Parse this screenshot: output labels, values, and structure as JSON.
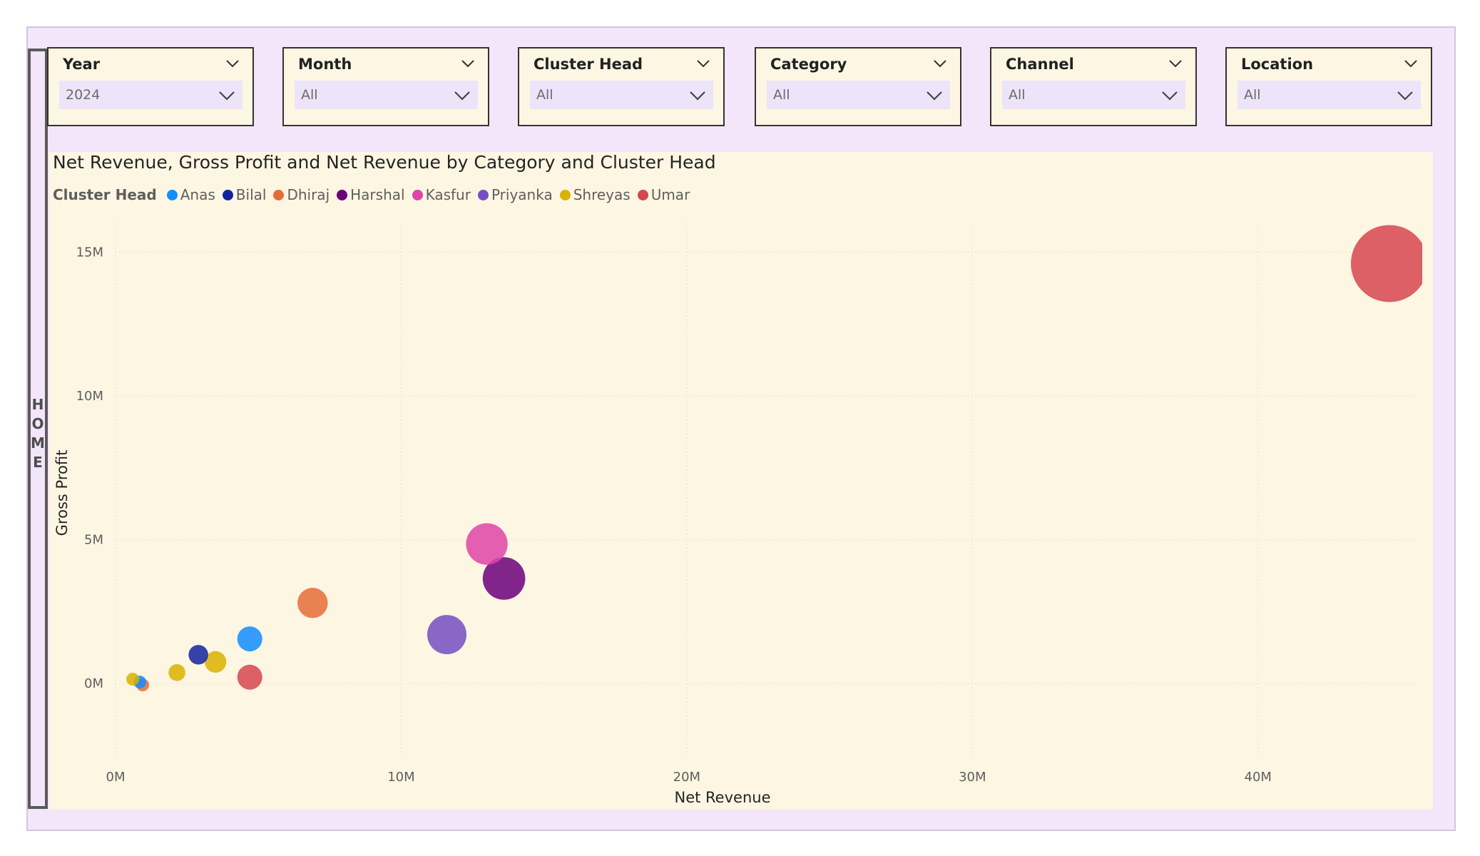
{
  "home": {
    "label": "HOME"
  },
  "slicers": [
    {
      "title": "Year",
      "value": "2024"
    },
    {
      "title": "Month",
      "value": "All"
    },
    {
      "title": "Cluster Head",
      "value": "All"
    },
    {
      "title": "Category",
      "value": "All"
    },
    {
      "title": "Channel",
      "value": "All"
    },
    {
      "title": "Location",
      "value": "All"
    }
  ],
  "chart_data": {
    "type": "scatter",
    "title": "Net Revenue, Gross Profit and Net Revenue by Category and Cluster Head",
    "xlabel": "Net Revenue",
    "ylabel": "Gross Profit",
    "size_measure": "Net Revenue",
    "legend_title": "Cluster Head",
    "legend_position": "top-left",
    "xlim": [
      0,
      45.5
    ],
    "ylim": [
      -2.6,
      16.0
    ],
    "x_unit": "M",
    "y_unit": "M",
    "x_ticks": [
      {
        "value": 0,
        "label": "0M"
      },
      {
        "value": 10,
        "label": "10M"
      },
      {
        "value": 20,
        "label": "20M"
      },
      {
        "value": 30,
        "label": "30M"
      },
      {
        "value": 40,
        "label": "40M"
      }
    ],
    "y_ticks": [
      {
        "value": 0,
        "label": "0M"
      },
      {
        "value": 5,
        "label": "5M"
      },
      {
        "value": 10,
        "label": "10M"
      },
      {
        "value": 15,
        "label": "15M"
      }
    ],
    "grid": true,
    "series": [
      {
        "name": "Anas",
        "color": "#118DFF",
        "points": [
          {
            "x": 4.7,
            "y": 1.55,
            "size": 4.7
          },
          {
            "x": 0.85,
            "y": 0.05,
            "size": 0.85
          }
        ]
      },
      {
        "name": "Bilal",
        "color": "#12239E",
        "points": [
          {
            "x": 2.9,
            "y": 1.0,
            "size": 2.9
          }
        ]
      },
      {
        "name": "Dhiraj",
        "color": "#E66C37",
        "points": [
          {
            "x": 6.9,
            "y": 2.8,
            "size": 6.9
          },
          {
            "x": 0.95,
            "y": -0.05,
            "size": 0.95
          }
        ]
      },
      {
        "name": "Harshal",
        "color": "#6B007B",
        "points": [
          {
            "x": 13.6,
            "y": 3.65,
            "size": 13.6
          }
        ]
      },
      {
        "name": "Kasfur",
        "color": "#E044A7",
        "points": [
          {
            "x": 13.0,
            "y": 4.85,
            "size": 13.0
          }
        ]
      },
      {
        "name": "Priyanka",
        "color": "#744EC2",
        "points": [
          {
            "x": 11.6,
            "y": 1.7,
            "size": 11.6
          }
        ]
      },
      {
        "name": "Shreyas",
        "color": "#D9B300",
        "points": [
          {
            "x": 3.5,
            "y": 0.75,
            "size": 3.5
          },
          {
            "x": 2.15,
            "y": 0.38,
            "size": 2.15
          },
          {
            "x": 0.6,
            "y": 0.15,
            "size": 0.6
          }
        ]
      },
      {
        "name": "Umar",
        "color": "#D64550",
        "points": [
          {
            "x": 44.6,
            "y": 14.6,
            "size": 44.6
          },
          {
            "x": 4.7,
            "y": 0.22,
            "size": 4.7
          }
        ]
      }
    ]
  }
}
